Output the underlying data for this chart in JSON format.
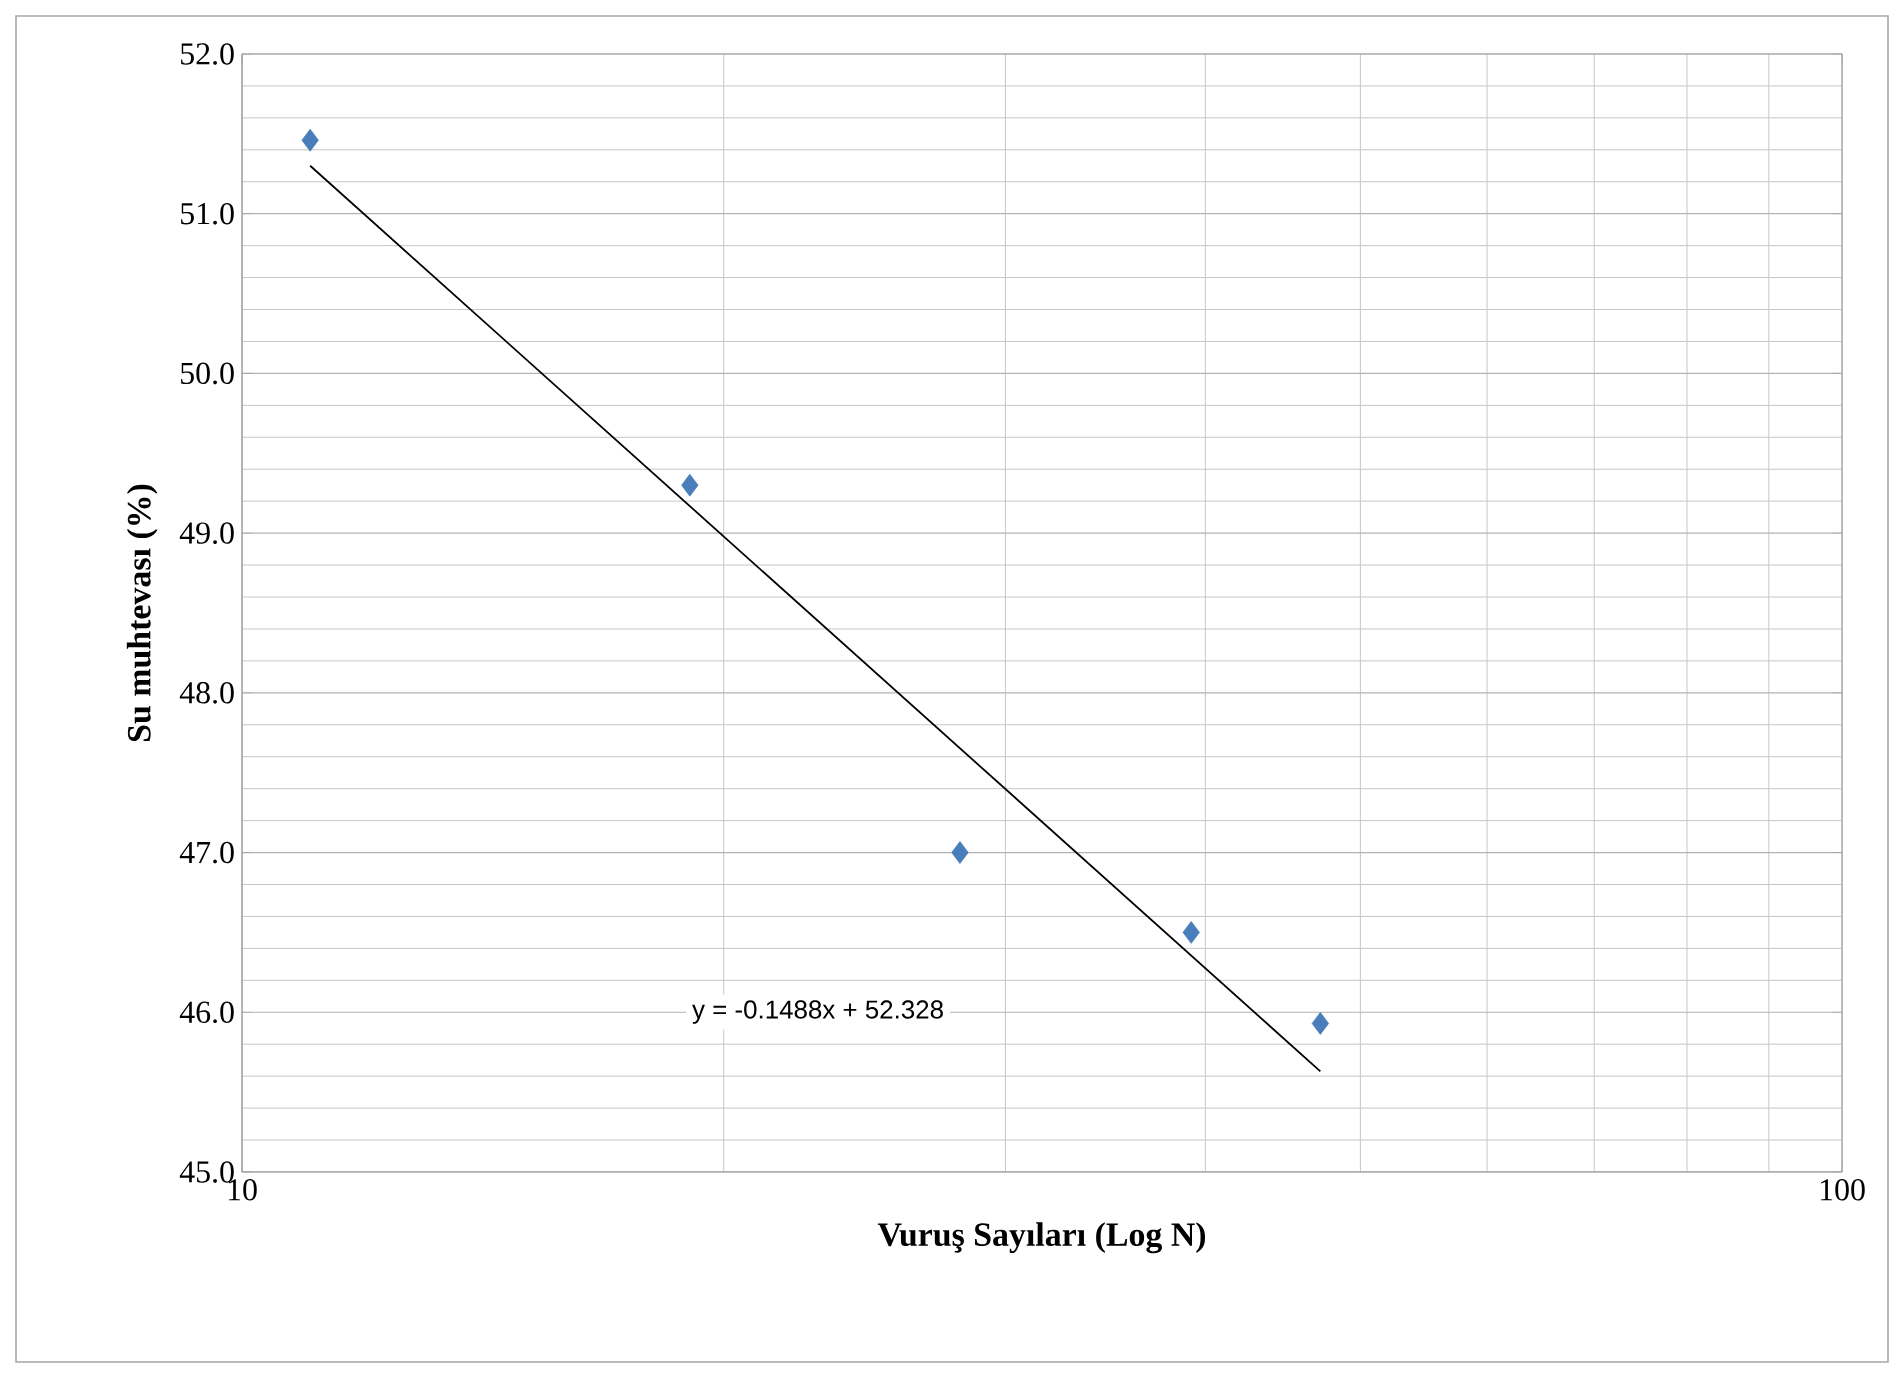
{
  "chart_data": {
    "type": "scatter",
    "xlabel": "Vuruş Sayıları (Log N)",
    "ylabel": "Su muhtevası (%)",
    "log": "x",
    "xlim": [
      10,
      100
    ],
    "xticks": [
      10,
      100
    ],
    "ylim": [
      45,
      52
    ],
    "yticks": [
      {
        "value": 45,
        "label": "45.0"
      },
      {
        "value": 46,
        "label": "46.0"
      },
      {
        "value": 47,
        "label": "47.0"
      },
      {
        "value": 48,
        "label": "48.0"
      },
      {
        "value": 49,
        "label": "49.0"
      },
      {
        "value": 50,
        "label": "50.0"
      },
      {
        "value": 51,
        "label": "51.0"
      },
      {
        "value": 52,
        "label": "52.0"
      }
    ],
    "grid": true,
    "marker": "diamond",
    "series": [
      {
        "color": "#4a7ebb",
        "x": [
          11.03,
          19.05,
          28.1,
          39.2,
          47.2
        ],
        "values": [
          51.46,
          49.3,
          47.0,
          46.5,
          45.93
        ]
      },
      {
        "type": "line",
        "color": "#000000",
        "marker": "none",
        "line_style": "solid",
        "x": [
          11.03,
          47.2
        ],
        "values": [
          51.3,
          45.63
        ]
      }
    ],
    "annotations": [
      "y = -0.1488x + 52.328"
    ]
  }
}
